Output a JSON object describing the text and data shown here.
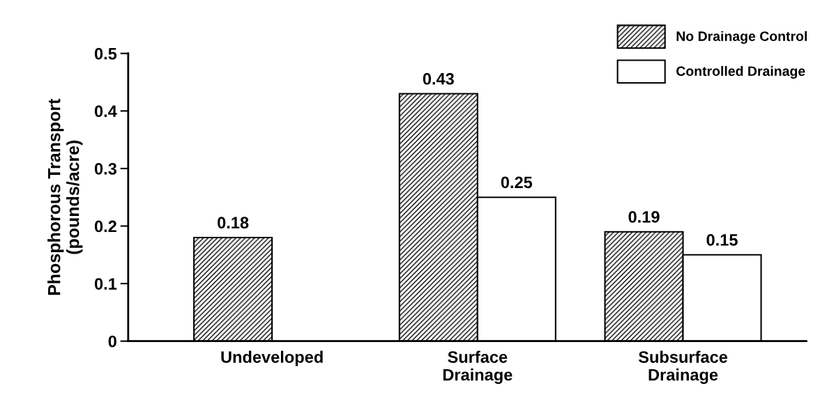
{
  "chart_data": {
    "type": "bar",
    "ylabel": "Phosphorous Transport\n(pounds/acre)",
    "categories": [
      "Undeveloped",
      "Surface\nDrainage",
      "Subsurface\nDrainage"
    ],
    "series": [
      {
        "name": "No Drainage Control",
        "color": "#000000",
        "values": [
          0.18,
          0.43,
          0.19
        ]
      },
      {
        "name": "Controlled Drainage",
        "color": "#ffffff",
        "values": [
          null,
          0.25,
          0.15
        ]
      }
    ],
    "ylim": [
      0,
      0.5
    ],
    "yticks": [
      0,
      0.1,
      0.2,
      0.3,
      0.4,
      0.5
    ],
    "data_labels": true,
    "legend": "top right",
    "grid": false
  }
}
